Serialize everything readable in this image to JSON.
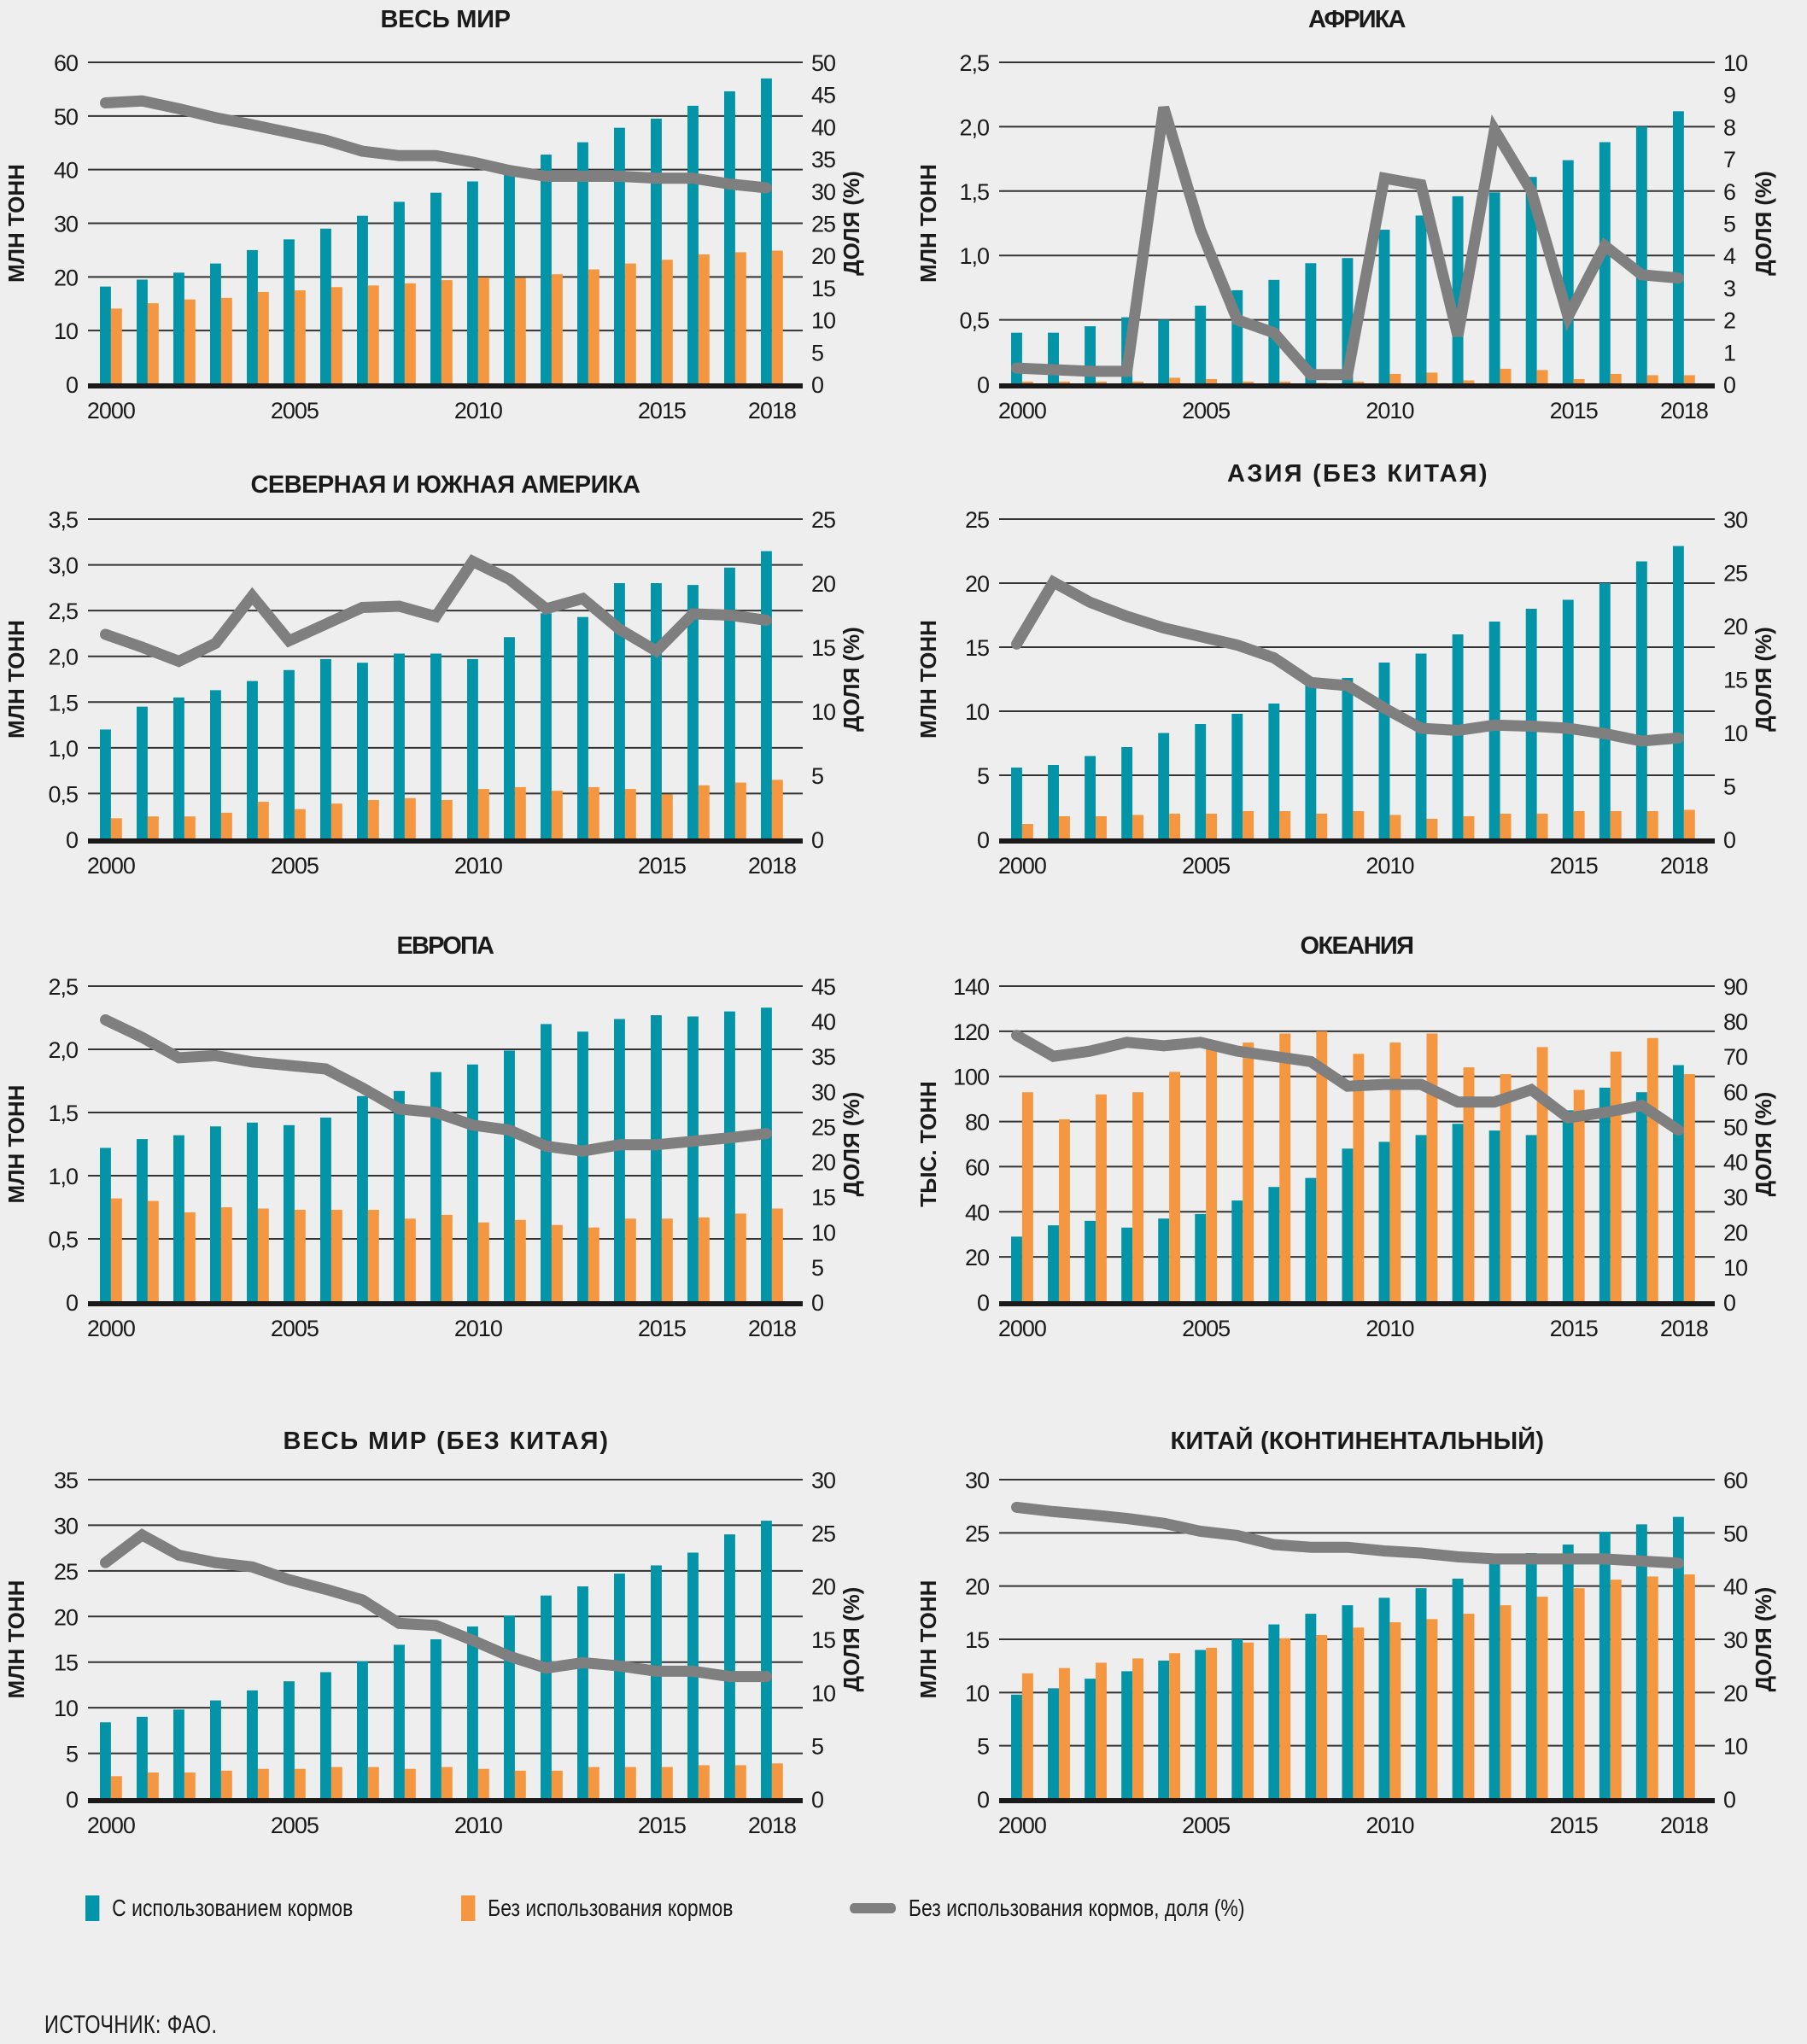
{
  "colors": {
    "fed": "#0494a8",
    "nonfed": "#f59740",
    "share": "#7f7f7f",
    "grid": "#333333",
    "axis": "#1a1a1a"
  },
  "legend": {
    "fed": "С использованием кормов",
    "nonfed": "Без использования кормов",
    "share": "Без использования кормов, доля (%)"
  },
  "source": "ИСТОЧНИК: ФАО.",
  "chart_data": [
    {
      "id": "world",
      "type": "bar",
      "title": "ВЕСЬ МИР",
      "ylabel": "МЛН ТОНН",
      "y2label": "ДОЛЯ (%)",
      "x": [
        2000,
        2001,
        2002,
        2003,
        2004,
        2005,
        2006,
        2007,
        2008,
        2009,
        2010,
        2011,
        2012,
        2013,
        2014,
        2015,
        2016,
        2017,
        2018
      ],
      "xticks": [
        "2000",
        "2005",
        "2010",
        "2015",
        "2018"
      ],
      "ylim": [
        0,
        60
      ],
      "yticks": [
        "0",
        "10",
        "20",
        "30",
        "40",
        "50",
        "60"
      ],
      "y2lim": [
        0,
        50
      ],
      "y2ticks": [
        "0",
        "5",
        "10",
        "15",
        "20",
        "25",
        "30",
        "35",
        "40",
        "45",
        "50"
      ],
      "grid": true,
      "series": [
        {
          "name": "С использованием кормов",
          "type": "bar",
          "axis": "left",
          "values": [
            18.2,
            19.5,
            20.8,
            22.5,
            25.0,
            27.0,
            29.0,
            31.4,
            34.0,
            35.7,
            37.8,
            40.0,
            42.8,
            45.1,
            47.8,
            49.5,
            51.9,
            54.6,
            57.0
          ]
        },
        {
          "name": "Без использования кормов",
          "type": "bar",
          "axis": "left",
          "values": [
            14.1,
            15.1,
            15.8,
            16.1,
            17.2,
            17.5,
            18.1,
            18.4,
            18.8,
            19.4,
            19.9,
            19.8,
            20.5,
            21.4,
            22.5,
            23.2,
            24.2,
            24.6,
            24.9
          ]
        },
        {
          "name": "Без использования кормов, доля (%)",
          "type": "line",
          "axis": "right",
          "values": [
            43.7,
            44.0,
            42.8,
            41.4,
            40.3,
            39.1,
            37.9,
            36.2,
            35.5,
            35.5,
            34.5,
            33.2,
            32.3,
            32.3,
            32.3,
            32.0,
            32.0,
            31.1,
            30.5
          ]
        }
      ]
    },
    {
      "id": "africa",
      "type": "bar",
      "title": "АФРИКА",
      "ylabel": "МЛН ТОНН",
      "y2label": "ДОЛЯ (%)",
      "x": [
        2000,
        2001,
        2002,
        2003,
        2004,
        2005,
        2006,
        2007,
        2008,
        2009,
        2010,
        2011,
        2012,
        2013,
        2014,
        2015,
        2016,
        2017,
        2018
      ],
      "xticks": [
        "2000",
        "2005",
        "2010",
        "2015",
        "2018"
      ],
      "ylim": [
        0,
        2.5
      ],
      "yticks": [
        "0",
        "0,5",
        "1,0",
        "1,5",
        "2,0",
        "2,5"
      ],
      "y2lim": [
        0,
        10
      ],
      "y2ticks": [
        "0",
        "1",
        "2",
        "3",
        "4",
        "5",
        "6",
        "7",
        "8",
        "9",
        "10"
      ],
      "grid": true,
      "series": [
        {
          "name": "С использованием кормов",
          "type": "bar",
          "axis": "left",
          "values": [
            0.4,
            0.4,
            0.45,
            0.52,
            0.5,
            0.61,
            0.73,
            0.81,
            0.94,
            0.98,
            1.2,
            1.31,
            1.46,
            1.49,
            1.61,
            1.74,
            1.88,
            2.0,
            2.12
          ]
        },
        {
          "name": "Без использования кормов",
          "type": "bar",
          "axis": "left",
          "values": [
            0.02,
            0.02,
            0.02,
            0.02,
            0.05,
            0.04,
            0.02,
            0.02,
            0.01,
            0.02,
            0.08,
            0.09,
            0.03,
            0.12,
            0.11,
            0.04,
            0.08,
            0.07,
            0.07
          ]
        },
        {
          "name": "Без использования кормов, доля (%)",
          "type": "line",
          "axis": "right",
          "values": [
            0.5,
            0.45,
            0.4,
            0.4,
            8.6,
            4.8,
            2.0,
            1.6,
            0.3,
            0.3,
            6.4,
            6.2,
            1.5,
            7.9,
            6.0,
            2.1,
            4.3,
            3.4,
            3.3
          ]
        }
      ]
    },
    {
      "id": "americas",
      "type": "bar",
      "title": "СЕВЕРНАЯ И ЮЖНАЯ АМЕРИКА",
      "ylabel": "МЛН ТОНН",
      "y2label": "ДОЛЯ (%)",
      "x": [
        2000,
        2001,
        2002,
        2003,
        2004,
        2005,
        2006,
        2007,
        2008,
        2009,
        2010,
        2011,
        2012,
        2013,
        2014,
        2015,
        2016,
        2017,
        2018
      ],
      "xticks": [
        "2000",
        "2005",
        "2010",
        "2015",
        "2018"
      ],
      "ylim": [
        0,
        3.5
      ],
      "yticks": [
        "0",
        "0,5",
        "1,0",
        "1,5",
        "2,0",
        "2,5",
        "3,0",
        "3,5"
      ],
      "y2lim": [
        0,
        25
      ],
      "y2ticks": [
        "0",
        "5",
        "10",
        "15",
        "20",
        "25"
      ],
      "grid": true,
      "series": [
        {
          "name": "С использованием кормов",
          "type": "bar",
          "axis": "left",
          "values": [
            1.2,
            1.45,
            1.55,
            1.63,
            1.73,
            1.85,
            1.97,
            1.93,
            2.03,
            2.03,
            1.97,
            2.21,
            2.47,
            2.43,
            2.8,
            2.8,
            2.78,
            2.97,
            3.15
          ]
        },
        {
          "name": "Без использования кормов",
          "type": "bar",
          "axis": "left",
          "values": [
            0.23,
            0.25,
            0.25,
            0.29,
            0.41,
            0.33,
            0.39,
            0.43,
            0.45,
            0.43,
            0.55,
            0.57,
            0.53,
            0.57,
            0.55,
            0.49,
            0.59,
            0.62,
            0.65
          ]
        },
        {
          "name": "Без использования кормов, доля (%)",
          "type": "line",
          "axis": "right",
          "values": [
            16.0,
            15.0,
            13.9,
            15.3,
            19.0,
            15.5,
            16.8,
            18.1,
            18.2,
            17.4,
            21.7,
            20.3,
            18.0,
            18.8,
            16.4,
            14.7,
            17.6,
            17.5,
            17.1
          ]
        }
      ]
    },
    {
      "id": "asia",
      "type": "bar",
      "title": "АЗИЯ (БЕЗ КИТАЯ)",
      "ylabel": "МЛН ТОНН",
      "y2label": "ДОЛЯ (%)",
      "x": [
        2000,
        2001,
        2002,
        2003,
        2004,
        2005,
        2006,
        2007,
        2008,
        2009,
        2010,
        2011,
        2012,
        2013,
        2014,
        2015,
        2016,
        2017,
        2018
      ],
      "xticks": [
        "2000",
        "2005",
        "2010",
        "2015",
        "2018"
      ],
      "ylim": [
        0,
        25
      ],
      "yticks": [
        "0",
        "5",
        "10",
        "15",
        "20",
        "25"
      ],
      "y2lim": [
        0,
        30
      ],
      "y2ticks": [
        "0",
        "5",
        "10",
        "15",
        "20",
        "25",
        "30"
      ],
      "grid": true,
      "series": [
        {
          "name": "С использованием кормов",
          "type": "bar",
          "axis": "left",
          "values": [
            5.6,
            5.8,
            6.5,
            7.2,
            8.3,
            9.0,
            9.8,
            10.6,
            12.2,
            12.6,
            13.8,
            14.5,
            16.0,
            17.0,
            18.0,
            18.7,
            20.0,
            21.7,
            22.9
          ]
        },
        {
          "name": "Без использования кормов",
          "type": "bar",
          "axis": "left",
          "values": [
            1.2,
            1.8,
            1.8,
            1.9,
            2.0,
            2.0,
            2.2,
            2.2,
            2.0,
            2.2,
            1.9,
            1.6,
            1.8,
            2.0,
            2.0,
            2.2,
            2.2,
            2.2,
            2.3
          ]
        },
        {
          "name": "Без использования кормов, доля (%)",
          "type": "line",
          "axis": "right",
          "values": [
            18.3,
            24.1,
            22.2,
            20.9,
            19.8,
            19.0,
            18.2,
            17.0,
            14.7,
            14.4,
            12.3,
            10.4,
            10.2,
            10.7,
            10.6,
            10.4,
            9.9,
            9.2,
            9.5
          ]
        }
      ]
    },
    {
      "id": "europe",
      "type": "bar",
      "title": "ЕВРОПА",
      "ylabel": "МЛН ТОНН",
      "y2label": "ДОЛЯ (%)",
      "x": [
        2000,
        2001,
        2002,
        2003,
        2004,
        2005,
        2006,
        2007,
        2008,
        2009,
        2010,
        2011,
        2012,
        2013,
        2014,
        2015,
        2016,
        2017,
        2018
      ],
      "xticks": [
        "2000",
        "2005",
        "2010",
        "2015",
        "2018"
      ],
      "ylim": [
        0,
        2.5
      ],
      "yticks": [
        "0",
        "0,5",
        "1,0",
        "1,5",
        "2,0",
        "2,5"
      ],
      "y2lim": [
        0,
        45
      ],
      "y2ticks": [
        "0",
        "5",
        "10",
        "15",
        "20",
        "25",
        "30",
        "35",
        "40",
        "45"
      ],
      "grid": true,
      "series": [
        {
          "name": "С использованием кормов",
          "type": "bar",
          "axis": "left",
          "values": [
            1.22,
            1.29,
            1.32,
            1.39,
            1.42,
            1.4,
            1.46,
            1.63,
            1.67,
            1.82,
            1.88,
            1.99,
            2.2,
            2.14,
            2.24,
            2.27,
            2.26,
            2.3,
            2.33
          ]
        },
        {
          "name": "Без использования кормов",
          "type": "bar",
          "axis": "left",
          "values": [
            0.82,
            0.8,
            0.71,
            0.75,
            0.74,
            0.73,
            0.73,
            0.73,
            0.66,
            0.69,
            0.63,
            0.65,
            0.61,
            0.59,
            0.66,
            0.66,
            0.67,
            0.7,
            0.74
          ]
        },
        {
          "name": "Без использования кормов, доля (%)",
          "type": "line",
          "axis": "right",
          "values": [
            40.2,
            37.7,
            34.8,
            35.1,
            34.2,
            33.7,
            33.2,
            30.5,
            27.5,
            27.0,
            25.2,
            24.5,
            22.2,
            21.5,
            22.4,
            22.4,
            22.9,
            23.4,
            24.0
          ]
        }
      ]
    },
    {
      "id": "oceania",
      "type": "bar",
      "title": "ОКЕАНИЯ",
      "ylabel": "ТЫС. ТОНН",
      "y2label": "ДОЛЯ (%)",
      "x": [
        2000,
        2001,
        2002,
        2003,
        2004,
        2005,
        2006,
        2007,
        2008,
        2009,
        2010,
        2011,
        2012,
        2013,
        2014,
        2015,
        2016,
        2017,
        2018
      ],
      "xticks": [
        "2000",
        "2005",
        "2010",
        "2015",
        "2018"
      ],
      "ylim": [
        0,
        140
      ],
      "yticks": [
        "0",
        "20",
        "40",
        "60",
        "80",
        "100",
        "120",
        "140"
      ],
      "y2lim": [
        0,
        90
      ],
      "y2ticks": [
        "0",
        "10",
        "20",
        "30",
        "40",
        "50",
        "60",
        "70",
        "80",
        "90"
      ],
      "grid": true,
      "series": [
        {
          "name": "С использованием кормов",
          "type": "bar",
          "axis": "left",
          "values": [
            29,
            34,
            36,
            33,
            37,
            39,
            45,
            51,
            55,
            68,
            71,
            74,
            79,
            76,
            74,
            85,
            95,
            93,
            105
          ]
        },
        {
          "name": "Без использования кормов",
          "type": "bar",
          "axis": "left",
          "values": [
            93,
            81,
            92,
            93,
            102,
            113,
            115,
            119,
            120,
            110,
            115,
            119,
            104,
            101,
            113,
            94,
            111,
            117,
            101
          ]
        },
        {
          "name": "Без использования кормов, доля (%)",
          "type": "line",
          "axis": "right",
          "values": [
            76,
            70,
            71.5,
            74,
            73,
            74,
            71.5,
            70,
            68.5,
            61.5,
            62,
            62,
            57,
            57,
            60.5,
            52.5,
            54,
            56,
            49
          ]
        }
      ]
    },
    {
      "id": "world-ex-china",
      "type": "bar",
      "title": "ВЕСЬ МИР (БЕЗ КИТАЯ)",
      "ylabel": "МЛН ТОНН",
      "y2label": "ДОЛЯ (%)",
      "x": [
        2000,
        2001,
        2002,
        2003,
        2004,
        2005,
        2006,
        2007,
        2008,
        2009,
        2010,
        2011,
        2012,
        2013,
        2014,
        2015,
        2016,
        2017,
        2018
      ],
      "xticks": [
        "2000",
        "2005",
        "2010",
        "2015",
        "2018"
      ],
      "ylim": [
        0,
        35
      ],
      "yticks": [
        "0",
        "5",
        "10",
        "15",
        "20",
        "25",
        "30",
        "35"
      ],
      "y2lim": [
        0,
        30
      ],
      "y2ticks": [
        "0",
        "5",
        "10",
        "15",
        "20",
        "25",
        "30"
      ],
      "grid": true,
      "series": [
        {
          "name": "С использованием кормов",
          "type": "bar",
          "axis": "left",
          "values": [
            8.4,
            9.0,
            9.8,
            10.8,
            11.9,
            12.9,
            13.9,
            15.1,
            16.9,
            17.5,
            18.9,
            20.1,
            22.3,
            23.3,
            24.7,
            25.6,
            27.0,
            29.0,
            30.5
          ]
        },
        {
          "name": "Без использования кормов",
          "type": "bar",
          "axis": "left",
          "values": [
            2.5,
            2.9,
            2.9,
            3.1,
            3.3,
            3.3,
            3.5,
            3.5,
            3.3,
            3.5,
            3.3,
            3.1,
            3.1,
            3.5,
            3.5,
            3.5,
            3.7,
            3.7,
            3.9
          ]
        },
        {
          "name": "Без использования кормов, доля (%)",
          "type": "line",
          "axis": "right",
          "values": [
            22.2,
            24.8,
            22.9,
            22.2,
            21.8,
            20.6,
            19.7,
            18.7,
            16.5,
            16.3,
            14.9,
            13.4,
            12.3,
            12.8,
            12.5,
            12.0,
            12.0,
            11.5,
            11.5
          ]
        }
      ]
    },
    {
      "id": "china",
      "type": "bar",
      "title": "КИТАЙ (КОНТИНЕНТАЛЬНЫЙ)",
      "ylabel": "МЛН ТОНН",
      "y2label": "ДОЛЯ (%)",
      "x": [
        2000,
        2001,
        2002,
        2003,
        2004,
        2005,
        2006,
        2007,
        2008,
        2009,
        2010,
        2011,
        2012,
        2013,
        2014,
        2015,
        2016,
        2017,
        2018
      ],
      "xticks": [
        "2000",
        "2005",
        "2010",
        "2015",
        "2018"
      ],
      "ylim": [
        0,
        30
      ],
      "yticks": [
        "0",
        "5",
        "10",
        "15",
        "20",
        "25",
        "30"
      ],
      "y2lim": [
        0,
        60
      ],
      "y2ticks": [
        "0",
        "10",
        "20",
        "30",
        "40",
        "50",
        "60"
      ],
      "grid": true,
      "series": [
        {
          "name": "С использованием кормов",
          "type": "bar",
          "axis": "left",
          "values": [
            9.8,
            10.4,
            11.3,
            12.0,
            13.0,
            14.0,
            15.0,
            16.4,
            17.4,
            18.2,
            18.9,
            19.8,
            20.7,
            22.5,
            23.1,
            23.9,
            25.1,
            25.8,
            26.5
          ]
        },
        {
          "name": "Без использования кормов",
          "type": "bar",
          "axis": "left",
          "values": [
            11.8,
            12.3,
            12.8,
            13.2,
            13.7,
            14.2,
            14.7,
            15.1,
            15.4,
            16.1,
            16.6,
            16.9,
            17.4,
            18.2,
            19.0,
            19.8,
            20.6,
            20.9,
            21.1
          ]
        },
        {
          "name": "Без использования кормов, доля (%)",
          "type": "line",
          "axis": "right",
          "values": [
            54.8,
            54.0,
            53.4,
            52.7,
            51.8,
            50.3,
            49.5,
            47.8,
            47.3,
            47.3,
            46.6,
            46.2,
            45.5,
            45.1,
            45.1,
            45.1,
            45.1,
            44.7,
            44.3
          ]
        }
      ]
    }
  ]
}
